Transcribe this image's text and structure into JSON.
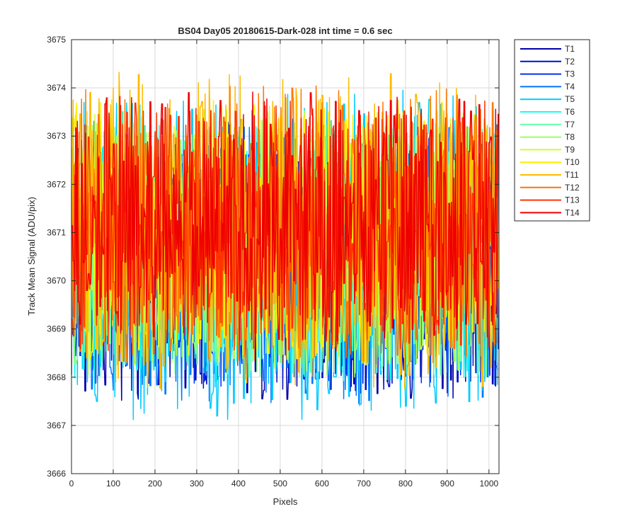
{
  "chart_data": {
    "type": "line",
    "title": "BS04 Day05 20180615-Dark-028 int time = 0.6 sec",
    "xlabel": "Pixels",
    "ylabel": "Track Mean Signal (ADU/pix)",
    "xlim": [
      0,
      1024
    ],
    "ylim": [
      3666,
      3675
    ],
    "xticks": [
      0,
      100,
      200,
      300,
      400,
      500,
      600,
      700,
      800,
      900,
      1000
    ],
    "yticks": [
      3666,
      3667,
      3668,
      3669,
      3670,
      3671,
      3672,
      3673,
      3674,
      3675
    ],
    "grid": true,
    "legend_position": "outside-top-right",
    "x_sampling": {
      "start": 0,
      "end": 1023,
      "step": 4
    },
    "series": [
      {
        "name": "T1",
        "color": "#0000aa",
        "mean": 3670.6,
        "amplitude": 1.5,
        "peak": 3673.0,
        "trough": 3667.1
      },
      {
        "name": "T2",
        "color": "#0011cc",
        "mean": 3670.6,
        "amplitude": 1.5,
        "peak": 3673.2,
        "trough": 3667.3
      },
      {
        "name": "T3",
        "color": "#0033ee",
        "mean": 3670.7,
        "amplitude": 1.45,
        "peak": 3673.3,
        "trough": 3667.4
      },
      {
        "name": "T4",
        "color": "#0077ff",
        "mean": 3670.7,
        "amplitude": 1.45,
        "peak": 3673.8,
        "trough": 3667.0
      },
      {
        "name": "T5",
        "color": "#00ccff",
        "mean": 3670.7,
        "amplitude": 1.4,
        "peak": 3674.4,
        "trough": 3666.6
      },
      {
        "name": "T6",
        "color": "#11ffee",
        "mean": 3670.8,
        "amplitude": 1.4,
        "peak": 3673.6,
        "trough": 3667.5
      },
      {
        "name": "T7",
        "color": "#66ffaa",
        "mean": 3670.8,
        "amplitude": 1.35,
        "peak": 3673.5,
        "trough": 3667.6
      },
      {
        "name": "T8",
        "color": "#99ff66",
        "mean": 3670.9,
        "amplitude": 1.3,
        "peak": 3673.7,
        "trough": 3667.6
      },
      {
        "name": "T9",
        "color": "#ccff33",
        "mean": 3670.9,
        "amplitude": 1.3,
        "peak": 3674.0,
        "trough": 3667.8
      },
      {
        "name": "T10",
        "color": "#ffee00",
        "mean": 3670.9,
        "amplitude": 1.3,
        "peak": 3674.2,
        "trough": 3667.9
      },
      {
        "name": "T11",
        "color": "#ffbb00",
        "mean": 3671.0,
        "amplitude": 1.25,
        "peak": 3674.8,
        "trough": 3667.3
      },
      {
        "name": "T12",
        "color": "#ff7700",
        "mean": 3671.0,
        "amplitude": 1.2,
        "peak": 3674.5,
        "trough": 3667.9
      },
      {
        "name": "T13",
        "color": "#ff3300",
        "mean": 3671.1,
        "amplitude": 1.15,
        "peak": 3674.1,
        "trough": 3668.2
      },
      {
        "name": "T14",
        "color": "#ee0000",
        "mean": 3671.1,
        "amplitude": 1.1,
        "peak": 3674.3,
        "trough": 3668.4
      }
    ]
  }
}
